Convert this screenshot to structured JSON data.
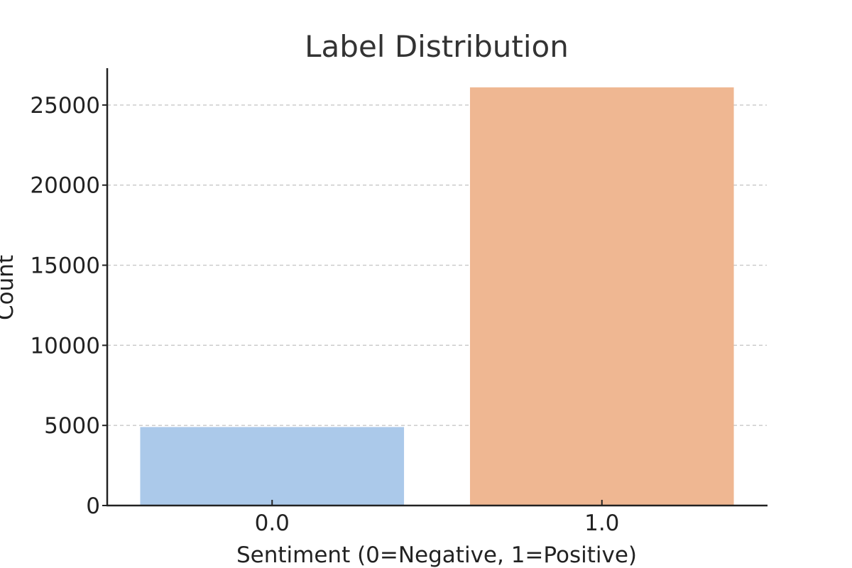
{
  "chart_data": {
    "type": "bar",
    "title": "Label Distribution",
    "xlabel": "Sentiment (0=Negative, 1=Positive)",
    "ylabel": "Count",
    "categories": [
      "0.0",
      "1.0"
    ],
    "values": [
      4900,
      26100
    ],
    "colors": [
      "#abc9ea",
      "#efb792"
    ],
    "ylim": [
      0,
      27300
    ],
    "yticks": [
      0,
      5000,
      10000,
      15000,
      20000,
      25000
    ],
    "grid": "horizontal dashed",
    "legend": "none"
  }
}
